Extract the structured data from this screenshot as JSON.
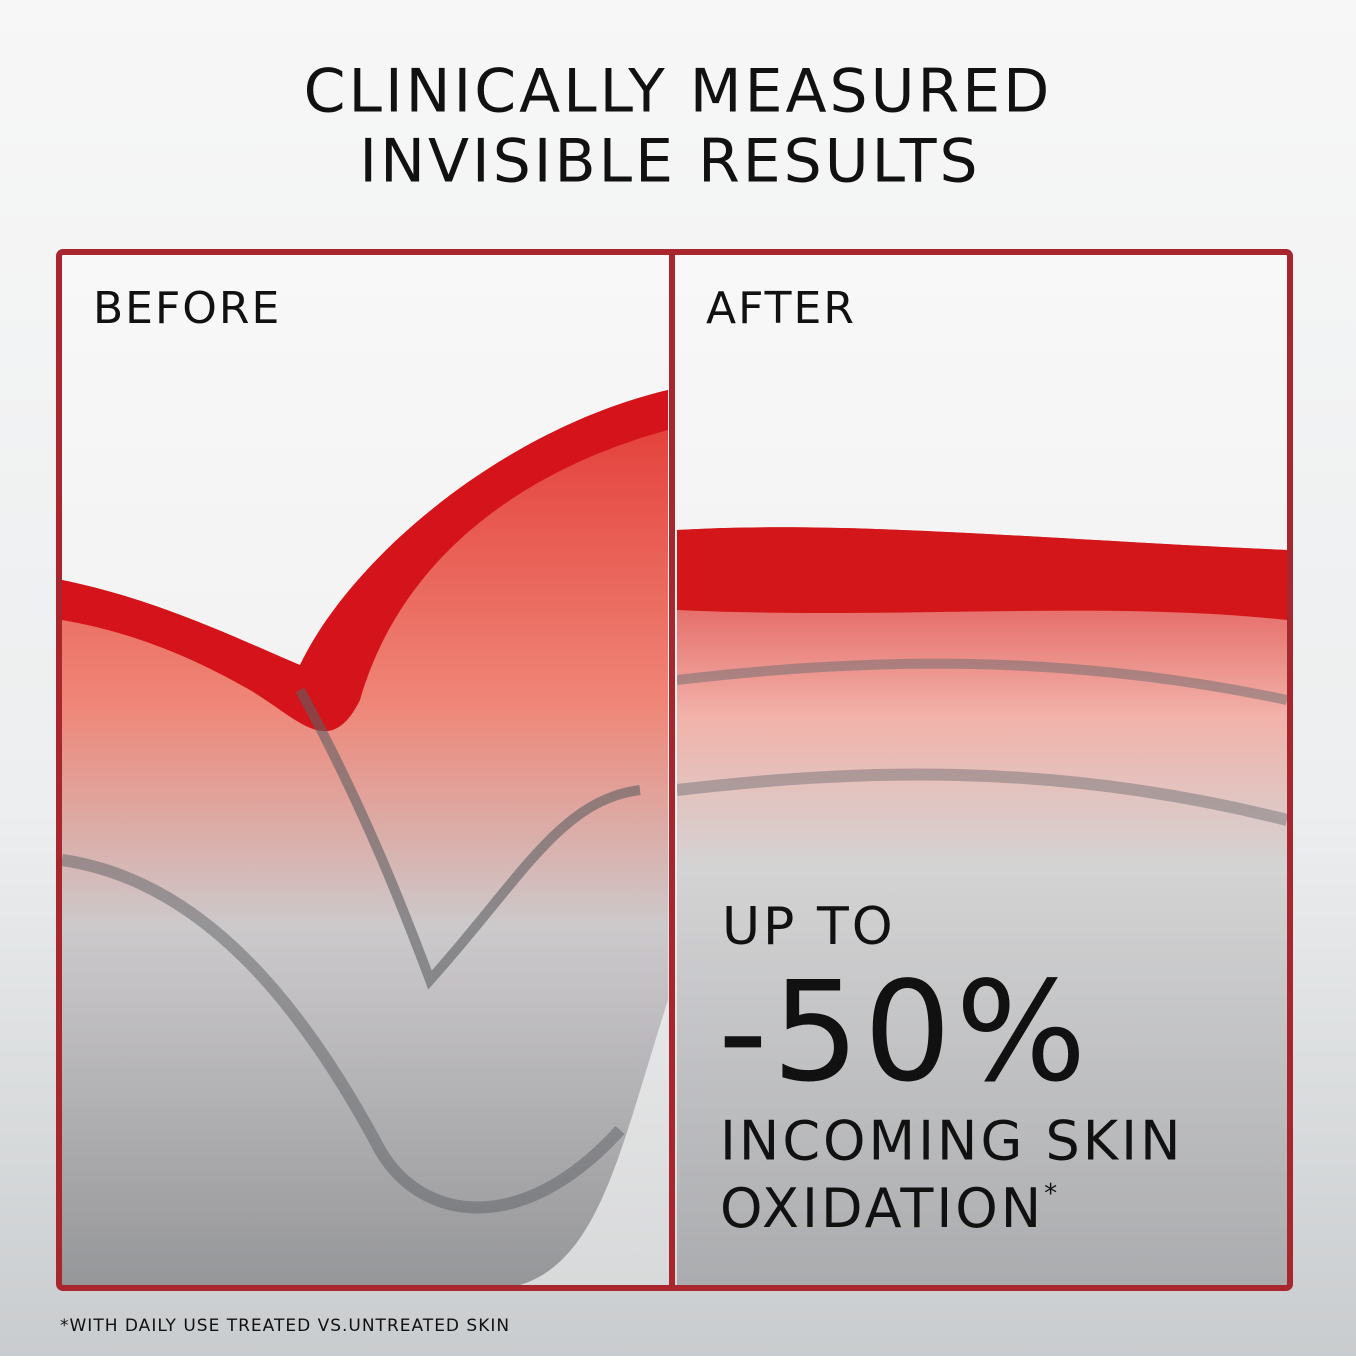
{
  "header": {
    "title": [
      "CLINICALLY MEASURED",
      "INVISIBLE RESULTS"
    ]
  },
  "panels": [
    {
      "label": "BEFORE"
    },
    {
      "label": "AFTER"
    }
  ],
  "claim": {
    "lines": [
      "UP TO",
      "-50%",
      "INCOMING SKIN",
      "OXIDATION"
    ],
    "mark": "*"
  },
  "footnote": "*WITH DAILY USE TREATED VS.UNTREATED SKIN"
}
